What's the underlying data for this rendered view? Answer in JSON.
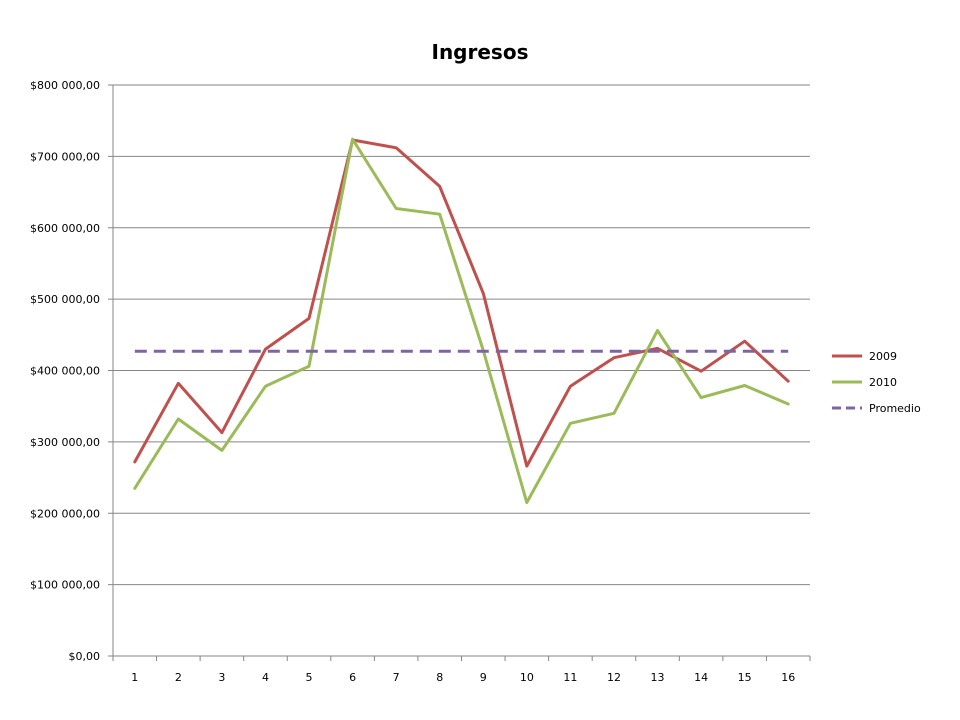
{
  "chart_data": {
    "type": "line",
    "title": "Ingresos",
    "categories": [
      "1",
      "2",
      "3",
      "4",
      "5",
      "6",
      "7",
      "8",
      "9",
      "10",
      "11",
      "12",
      "13",
      "14",
      "15",
      "16"
    ],
    "ylim": [
      0,
      800000
    ],
    "yticks": [
      0,
      100000,
      200000,
      300000,
      400000,
      500000,
      600000,
      700000,
      800000
    ],
    "ytick_labels": [
      "$0,00",
      "$100 000,00",
      "$200 000,00",
      "$300 000,00",
      "$400 000,00",
      "$500 000,00",
      "$600 000,00",
      "$700 000,00",
      "$800 000,00"
    ],
    "grid": true,
    "legend_position": "right",
    "series": [
      {
        "name": "2009",
        "color": "#c0504d",
        "dash": false,
        "values": [
          272000,
          382000,
          313000,
          430000,
          473000,
          723000,
          712000,
          658000,
          508000,
          266000,
          378000,
          418000,
          431000,
          399000,
          441000,
          385000
        ]
      },
      {
        "name": "2010",
        "color": "#9bbb59",
        "dash": false,
        "values": [
          235000,
          332000,
          288000,
          378000,
          406000,
          724000,
          627000,
          619000,
          428000,
          215000,
          326000,
          340000,
          456000,
          362000,
          379000,
          353000
        ]
      },
      {
        "name": "Promedio",
        "color": "#8064a2",
        "dash": true,
        "values": [
          427000,
          427000,
          427000,
          427000,
          427000,
          427000,
          427000,
          427000,
          427000,
          427000,
          427000,
          427000,
          427000,
          427000,
          427000,
          427000
        ]
      }
    ]
  }
}
